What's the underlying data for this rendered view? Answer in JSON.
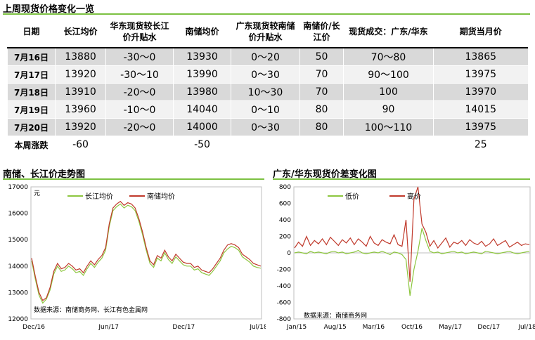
{
  "page": {
    "title": "上周现货价格变化一览"
  },
  "table": {
    "headers": [
      "日期",
      "长江均价",
      "华东现货较长江价升贴水",
      "南储均价",
      "广东现货较南储价升贴水",
      "南储价/长江价",
      "现货成交：广东/华东",
      "期货当月价"
    ],
    "rows": [
      [
        "7月16日",
        "13880",
        "-30～0",
        "13930",
        "0～20",
        "50",
        "70～80",
        "13865"
      ],
      [
        "7月17日",
        "13920",
        "-30～10",
        "13990",
        "0～30",
        "70",
        "90～100",
        "13975"
      ],
      [
        "7月18日",
        "13910",
        "-20～0",
        "13980",
        "10～30",
        "70",
        "100",
        "13970"
      ],
      [
        "7月19日",
        "13960",
        "-10～0",
        "14040",
        "0～10",
        "80",
        "90",
        "14015"
      ],
      [
        "7月20日",
        "13920",
        "-20～0",
        "14000",
        "0～30",
        "80",
        "100～110",
        "13975"
      ],
      [
        "本周涨跌",
        "-60",
        "",
        "-50",
        "",
        "",
        "",
        "25"
      ]
    ]
  },
  "chart_data": [
    {
      "type": "line",
      "title": "南储、长江价走势图",
      "ylabel": "元",
      "ylim": [
        12000,
        17000
      ],
      "yticks": [
        "12000",
        "13000",
        "14000",
        "15000",
        "16000",
        "17000"
      ],
      "xticks": [
        "Dec/16",
        "Jun/17",
        "Dec/17",
        "Jul/18"
      ],
      "xrange": [
        "2016-12",
        "2018-07"
      ],
      "source": "数据来源：南储商务网、长江有色金属网",
      "legend_position": "top-center",
      "series": [
        {
          "name": "长江均价",
          "color": "#8dc63f",
          "values": [
            14200,
            13500,
            12900,
            12600,
            12750,
            13100,
            13700,
            14000,
            13800,
            13850,
            14000,
            13900,
            13750,
            13800,
            13650,
            13900,
            14100,
            13950,
            14150,
            14300,
            14600,
            15500,
            16100,
            16250,
            16350,
            16200,
            16300,
            16250,
            16100,
            15700,
            15200,
            14600,
            14100,
            13950,
            14300,
            14200,
            14500,
            14250,
            14100,
            14350,
            14200,
            14050,
            14000,
            14000,
            13850,
            13900,
            13750,
            13700,
            13650,
            13800,
            14000,
            14200,
            14500,
            14650,
            14750,
            14700,
            14600,
            14350,
            14250,
            14150,
            14000,
            13950,
            13920
          ]
        },
        {
          "name": "南储均价",
          "color": "#c0392b",
          "values": [
            14300,
            13600,
            13000,
            12700,
            12800,
            13200,
            13800,
            14100,
            13900,
            13950,
            14100,
            14000,
            13850,
            13900,
            13750,
            14000,
            14200,
            14050,
            14250,
            14400,
            14700,
            15600,
            16200,
            16350,
            16450,
            16300,
            16400,
            16350,
            16200,
            15800,
            15300,
            14700,
            14200,
            14050,
            14400,
            14300,
            14600,
            14350,
            14200,
            14450,
            14300,
            14150,
            14100,
            14100,
            13950,
            14000,
            13850,
            13800,
            13750,
            13900,
            14100,
            14300,
            14600,
            14800,
            14850,
            14800,
            14700,
            14450,
            14350,
            14250,
            14100,
            14050,
            14000
          ]
        }
      ]
    },
    {
      "type": "line",
      "title": "广东/华东现货价差变化图",
      "ylim": [
        -800,
        800
      ],
      "yticks": [
        "-800",
        "-600",
        "-400",
        "-200",
        "0",
        "200",
        "400",
        "600",
        "800"
      ],
      "xticks": [
        "Jan/15",
        "Aug/15",
        "Mar/16",
        "Oct/16",
        "May/17",
        "Dec/17",
        "Jul/18"
      ],
      "xrange": [
        "2015-01",
        "2018-07"
      ],
      "source": "数据来源：南储商务网",
      "legend_position": "top-center",
      "series": [
        {
          "name": "低价",
          "color": "#8dc63f",
          "values": [
            0,
            10,
            0,
            -10,
            20,
            0,
            10,
            0,
            -10,
            10,
            20,
            0,
            10,
            -10,
            0,
            10,
            30,
            0,
            -10,
            0,
            10,
            0,
            20,
            0,
            -20,
            10,
            0,
            -20,
            -80,
            -520,
            -200,
            20,
            300,
            150,
            20,
            0,
            10,
            -10,
            0,
            10,
            20,
            0,
            10,
            -10,
            0,
            10,
            0,
            -10,
            20,
            10,
            0,
            -10,
            0,
            10,
            20,
            0,
            -10,
            0,
            10,
            20
          ]
        },
        {
          "name": "高价",
          "color": "#c0392b",
          "values": [
            60,
            130,
            80,
            200,
            90,
            150,
            110,
            170,
            100,
            190,
            140,
            90,
            160,
            120,
            180,
            100,
            170,
            130,
            80,
            200,
            120,
            90,
            160,
            130,
            110,
            220,
            100,
            80,
            400,
            -350,
            650,
            800,
            350,
            250,
            80,
            150,
            60,
            120,
            180,
            70,
            130,
            110,
            150,
            90,
            160,
            120,
            100,
            140,
            80,
            110,
            170,
            90,
            120,
            150,
            70,
            100,
            130,
            90,
            110,
            100
          ]
        }
      ]
    }
  ],
  "charts": {
    "left": {
      "title": "南储、长江价走势图"
    },
    "right": {
      "title": "广东/华东现货价差变化图"
    }
  }
}
